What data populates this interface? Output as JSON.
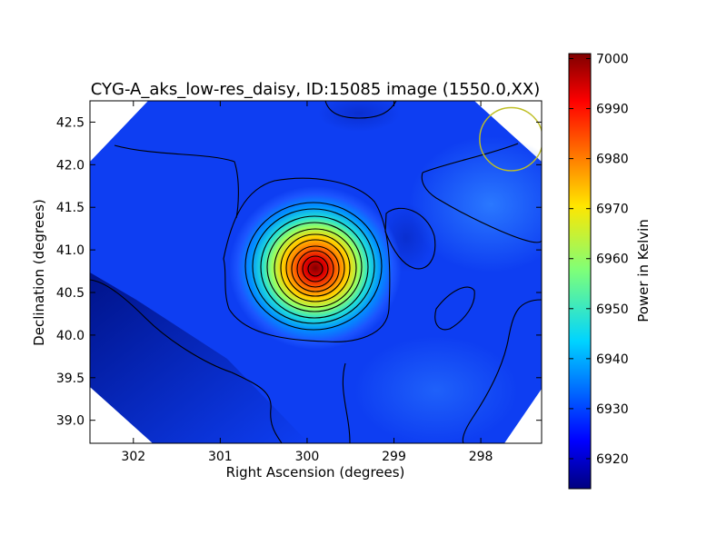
{
  "chart_data": {
    "type": "heatmap",
    "title": "CYG-A_aks_low-res_daisy, ID:15085 image (1550.0,XX)",
    "xlabel": "Right Ascension (degrees)",
    "ylabel": "Declination (degrees)",
    "xlim": [
      302.5,
      297.3
    ],
    "ylim": [
      38.73,
      42.75
    ],
    "x_ticks": [
      302,
      301,
      300,
      299,
      298
    ],
    "x_tick_labels": [
      "302",
      "301",
      "300",
      "299",
      "298"
    ],
    "y_ticks": [
      39.0,
      39.5,
      40.0,
      40.5,
      41.0,
      41.5,
      42.0,
      42.5
    ],
    "y_tick_labels": [
      "39.0",
      "39.5",
      "40.0",
      "40.5",
      "41.0",
      "41.5",
      "42.0",
      "42.5"
    ],
    "colorbar": {
      "label": "Power in Kelvin",
      "range": [
        6914,
        7001
      ],
      "ticks": [
        6920,
        6930,
        6940,
        6950,
        6960,
        6970,
        6980,
        6990,
        7000
      ],
      "tick_labels": [
        "6920",
        "6930",
        "6940",
        "6950",
        "6960",
        "6970",
        "6980",
        "6990",
        "7000"
      ],
      "colormap": "jet"
    },
    "source_peak": {
      "ra": 299.85,
      "dec": 40.75,
      "value": 7000
    },
    "beam_circle": {
      "ra": 297.65,
      "dec": 42.3,
      "radius_deg": 0.37,
      "color": "#bfbf26"
    },
    "grid": false
  }
}
